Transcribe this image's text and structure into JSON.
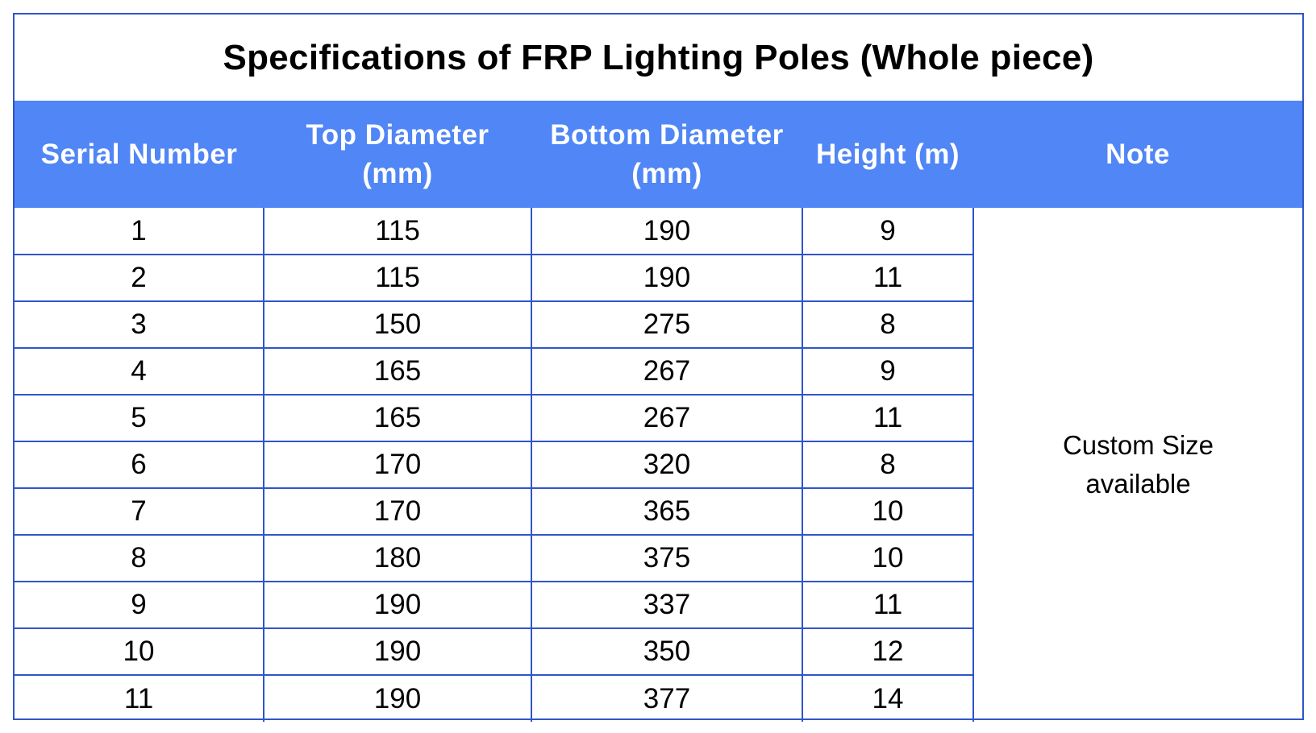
{
  "title": "Specifications of FRP Lighting Poles (Whole piece)",
  "columns": {
    "serial": "Serial Number",
    "top_line1": "Top Diameter",
    "top_line2": "(mm)",
    "bottom_line1": "Bottom Diameter",
    "bottom_line2": "(mm)",
    "height": "Height (m)",
    "note": "Note"
  },
  "rows": [
    {
      "serial": "1",
      "top": "115",
      "bottom": "190",
      "height": "9"
    },
    {
      "serial": "2",
      "top": "115",
      "bottom": "190",
      "height": "11"
    },
    {
      "serial": "3",
      "top": "150",
      "bottom": "275",
      "height": "8"
    },
    {
      "serial": "4",
      "top": "165",
      "bottom": "267",
      "height": "9"
    },
    {
      "serial": "5",
      "top": "165",
      "bottom": "267",
      "height": "11"
    },
    {
      "serial": "6",
      "top": "170",
      "bottom": "320",
      "height": "8"
    },
    {
      "serial": "7",
      "top": "170",
      "bottom": "365",
      "height": "10"
    },
    {
      "serial": "8",
      "top": "180",
      "bottom": "375",
      "height": "10"
    },
    {
      "serial": "9",
      "top": "190",
      "bottom": "337",
      "height": "11"
    },
    {
      "serial": "10",
      "top": "190",
      "bottom": "350",
      "height": "12"
    },
    {
      "serial": "11",
      "top": "190",
      "bottom": "377",
      "height": "14"
    }
  ],
  "note": {
    "line1": "Custom Size",
    "line2": "available"
  },
  "colors": {
    "header_background": "#5086f5",
    "border": "#2f55c9",
    "header_text": "#ffffff"
  }
}
